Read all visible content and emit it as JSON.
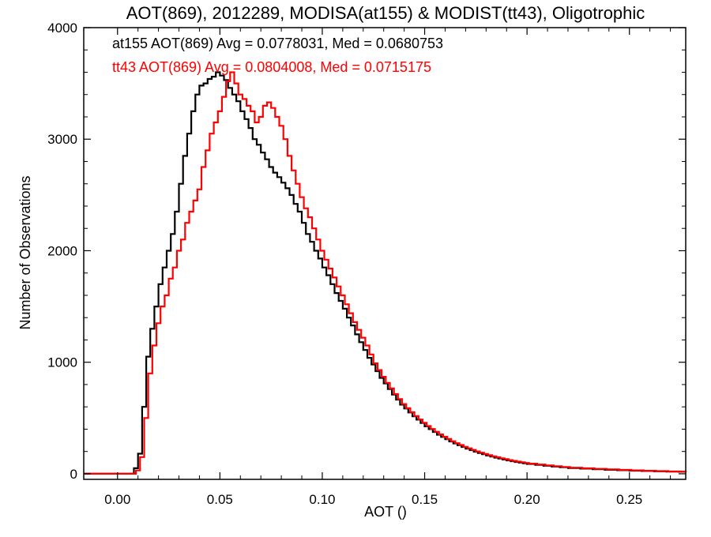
{
  "chart_data": {
    "type": "line",
    "title": "AOT(869), 2012289, MODISA(at155) & MODIST(tt43), Oligotrophic",
    "xlabel": "AOT ()",
    "ylabel": "Number of Observations",
    "xlim": [
      -0.0165,
      0.2775
    ],
    "ylim": [
      -50,
      4000
    ],
    "x_ticks": [
      0.0,
      0.05,
      0.1,
      0.15,
      0.2,
      0.25
    ],
    "x_tick_labels": [
      "0.00",
      "0.05",
      "0.10",
      "0.15",
      "0.20",
      "0.25"
    ],
    "y_ticks": [
      0,
      1000,
      2000,
      3000,
      4000
    ],
    "y_tick_labels": [
      "0",
      "1000",
      "2000",
      "3000",
      "4000"
    ],
    "step": "histogram",
    "series": [
      {
        "name": "at155",
        "color": "#000000",
        "label": "at155 AOT(869) Avg = 0.0778031, Med = 0.0680753",
        "points": [
          [
            -0.0165,
            0
          ],
          [
            0.006,
            0
          ],
          [
            0.008,
            50
          ],
          [
            0.01,
            180
          ],
          [
            0.012,
            600
          ],
          [
            0.014,
            1050
          ],
          [
            0.016,
            1300
          ],
          [
            0.018,
            1500
          ],
          [
            0.02,
            1700
          ],
          [
            0.022,
            1850
          ],
          [
            0.024,
            2000
          ],
          [
            0.026,
            2150
          ],
          [
            0.028,
            2350
          ],
          [
            0.03,
            2600
          ],
          [
            0.032,
            2850
          ],
          [
            0.034,
            3050
          ],
          [
            0.036,
            3250
          ],
          [
            0.038,
            3400
          ],
          [
            0.04,
            3480
          ],
          [
            0.042,
            3500
          ],
          [
            0.044,
            3540
          ],
          [
            0.046,
            3560
          ],
          [
            0.048,
            3600
          ],
          [
            0.05,
            3570
          ],
          [
            0.052,
            3530
          ],
          [
            0.054,
            3460
          ],
          [
            0.056,
            3400
          ],
          [
            0.058,
            3340
          ],
          [
            0.06,
            3250
          ],
          [
            0.062,
            3180
          ],
          [
            0.064,
            3100
          ],
          [
            0.066,
            3000
          ],
          [
            0.068,
            2950
          ],
          [
            0.07,
            2880
          ],
          [
            0.072,
            2820
          ],
          [
            0.074,
            2750
          ],
          [
            0.076,
            2700
          ],
          [
            0.078,
            2660
          ],
          [
            0.08,
            2610
          ],
          [
            0.082,
            2560
          ],
          [
            0.084,
            2500
          ],
          [
            0.086,
            2420
          ],
          [
            0.088,
            2350
          ],
          [
            0.09,
            2250
          ],
          [
            0.092,
            2150
          ],
          [
            0.094,
            2080
          ],
          [
            0.096,
            2000
          ],
          [
            0.098,
            1930
          ],
          [
            0.1,
            1850
          ],
          [
            0.102,
            1780
          ],
          [
            0.104,
            1700
          ],
          [
            0.106,
            1620
          ],
          [
            0.108,
            1550
          ],
          [
            0.11,
            1480
          ],
          [
            0.112,
            1400
          ],
          [
            0.114,
            1330
          ],
          [
            0.116,
            1250
          ],
          [
            0.118,
            1180
          ],
          [
            0.12,
            1110
          ],
          [
            0.122,
            1040
          ],
          [
            0.124,
            980
          ],
          [
            0.126,
            920
          ],
          [
            0.128,
            860
          ],
          [
            0.13,
            810
          ],
          [
            0.132,
            760
          ],
          [
            0.134,
            710
          ],
          [
            0.136,
            665
          ],
          [
            0.138,
            620
          ],
          [
            0.14,
            585
          ],
          [
            0.142,
            550
          ],
          [
            0.144,
            515
          ],
          [
            0.146,
            485
          ],
          [
            0.148,
            455
          ],
          [
            0.15,
            425
          ],
          [
            0.152,
            400
          ],
          [
            0.154,
            375
          ],
          [
            0.156,
            350
          ],
          [
            0.158,
            330
          ],
          [
            0.16,
            310
          ],
          [
            0.162,
            290
          ],
          [
            0.164,
            272
          ],
          [
            0.166,
            256
          ],
          [
            0.168,
            240
          ],
          [
            0.17,
            225
          ],
          [
            0.172,
            212
          ],
          [
            0.174,
            198
          ],
          [
            0.176,
            186
          ],
          [
            0.178,
            175
          ],
          [
            0.18,
            164
          ],
          [
            0.182,
            154
          ],
          [
            0.184,
            145
          ],
          [
            0.186,
            136
          ],
          [
            0.188,
            128
          ],
          [
            0.19,
            120
          ],
          [
            0.192,
            113
          ],
          [
            0.194,
            106
          ],
          [
            0.196,
            100
          ],
          [
            0.198,
            94
          ],
          [
            0.2,
            88
          ],
          [
            0.204,
            80
          ],
          [
            0.208,
            72
          ],
          [
            0.212,
            65
          ],
          [
            0.216,
            58
          ],
          [
            0.22,
            52
          ],
          [
            0.226,
            46
          ],
          [
            0.232,
            41
          ],
          [
            0.238,
            36
          ],
          [
            0.244,
            32
          ],
          [
            0.25,
            28
          ],
          [
            0.256,
            25
          ],
          [
            0.262,
            22
          ],
          [
            0.268,
            20
          ],
          [
            0.274,
            18
          ],
          [
            0.2775,
            17
          ]
        ]
      },
      {
        "name": "tt43",
        "color": "#ff0000",
        "label": "tt43 AOT(869) Avg = 0.0804008, Med = 0.0715175",
        "points": [
          [
            -0.0165,
            0
          ],
          [
            0.007,
            0
          ],
          [
            0.009,
            30
          ],
          [
            0.011,
            150
          ],
          [
            0.013,
            500
          ],
          [
            0.015,
            900
          ],
          [
            0.017,
            1150
          ],
          [
            0.019,
            1350
          ],
          [
            0.021,
            1500
          ],
          [
            0.023,
            1600
          ],
          [
            0.025,
            1750
          ],
          [
            0.027,
            1850
          ],
          [
            0.029,
            2000
          ],
          [
            0.031,
            2100
          ],
          [
            0.033,
            2250
          ],
          [
            0.035,
            2350
          ],
          [
            0.037,
            2450
          ],
          [
            0.039,
            2550
          ],
          [
            0.041,
            2750
          ],
          [
            0.043,
            2900
          ],
          [
            0.045,
            3050
          ],
          [
            0.047,
            3150
          ],
          [
            0.049,
            3250
          ],
          [
            0.051,
            3380
          ],
          [
            0.053,
            3520
          ],
          [
            0.055,
            3600
          ],
          [
            0.057,
            3500
          ],
          [
            0.059,
            3400
          ],
          [
            0.061,
            3360
          ],
          [
            0.063,
            3300
          ],
          [
            0.065,
            3250
          ],
          [
            0.067,
            3150
          ],
          [
            0.069,
            3200
          ],
          [
            0.071,
            3300
          ],
          [
            0.073,
            3330
          ],
          [
            0.075,
            3280
          ],
          [
            0.077,
            3200
          ],
          [
            0.079,
            3120
          ],
          [
            0.081,
            3000
          ],
          [
            0.083,
            2850
          ],
          [
            0.085,
            2720
          ],
          [
            0.087,
            2600
          ],
          [
            0.089,
            2480
          ],
          [
            0.091,
            2380
          ],
          [
            0.093,
            2300
          ],
          [
            0.095,
            2200
          ],
          [
            0.097,
            2100
          ],
          [
            0.099,
            2000
          ],
          [
            0.101,
            1920
          ],
          [
            0.103,
            1840
          ],
          [
            0.105,
            1760
          ],
          [
            0.107,
            1680
          ],
          [
            0.109,
            1600
          ],
          [
            0.111,
            1520
          ],
          [
            0.113,
            1440
          ],
          [
            0.115,
            1360
          ],
          [
            0.117,
            1290
          ],
          [
            0.119,
            1220
          ],
          [
            0.121,
            1150
          ],
          [
            0.123,
            1070
          ],
          [
            0.125,
            990
          ],
          [
            0.127,
            930
          ],
          [
            0.129,
            870
          ],
          [
            0.131,
            815
          ],
          [
            0.133,
            765
          ],
          [
            0.135,
            715
          ],
          [
            0.137,
            670
          ],
          [
            0.139,
            625
          ],
          [
            0.141,
            588
          ],
          [
            0.143,
            552
          ],
          [
            0.145,
            518
          ],
          [
            0.147,
            487
          ],
          [
            0.149,
            457
          ],
          [
            0.151,
            428
          ],
          [
            0.153,
            402
          ],
          [
            0.155,
            377
          ],
          [
            0.157,
            353
          ],
          [
            0.159,
            332
          ],
          [
            0.161,
            312
          ],
          [
            0.163,
            292
          ],
          [
            0.165,
            274
          ],
          [
            0.167,
            258
          ],
          [
            0.169,
            242
          ],
          [
            0.171,
            228
          ],
          [
            0.173,
            214
          ],
          [
            0.175,
            201
          ],
          [
            0.177,
            189
          ],
          [
            0.179,
            178
          ],
          [
            0.181,
            167
          ],
          [
            0.183,
            157
          ],
          [
            0.185,
            148
          ],
          [
            0.187,
            139
          ],
          [
            0.189,
            131
          ],
          [
            0.191,
            123
          ],
          [
            0.193,
            116
          ],
          [
            0.195,
            109
          ],
          [
            0.197,
            103
          ],
          [
            0.199,
            97
          ],
          [
            0.201,
            91
          ],
          [
            0.205,
            83
          ],
          [
            0.209,
            75
          ],
          [
            0.213,
            68
          ],
          [
            0.217,
            61
          ],
          [
            0.221,
            55
          ],
          [
            0.227,
            49
          ],
          [
            0.233,
            44
          ],
          [
            0.239,
            39
          ],
          [
            0.245,
            35
          ],
          [
            0.251,
            31
          ],
          [
            0.257,
            27
          ],
          [
            0.263,
            24
          ],
          [
            0.269,
            21
          ],
          [
            0.275,
            19
          ],
          [
            0.2775,
            18
          ]
        ]
      }
    ]
  }
}
